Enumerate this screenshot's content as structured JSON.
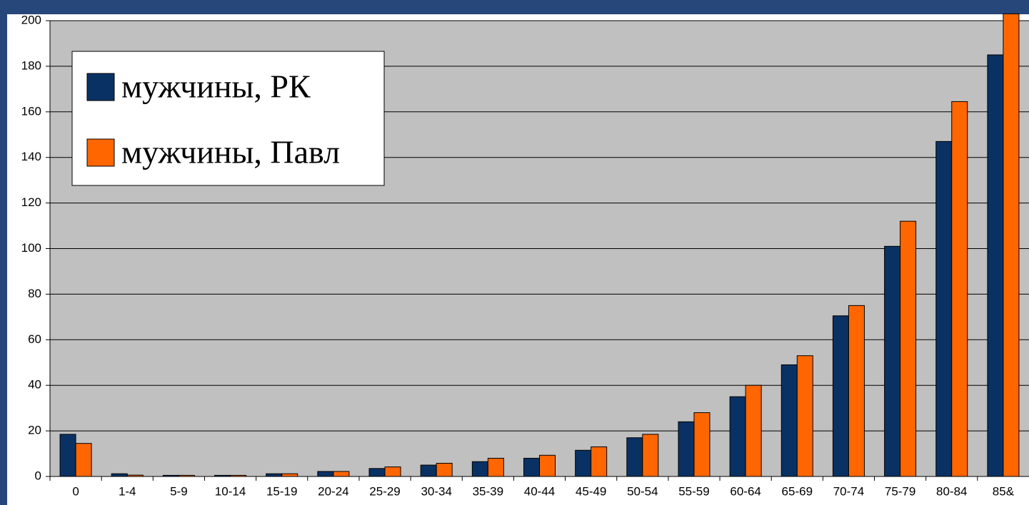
{
  "chart_data": {
    "type": "bar",
    "categories": [
      "0",
      "1-4",
      "5-9",
      "10-14",
      "15-19",
      "20-24",
      "25-29",
      "30-34",
      "35-39",
      "40-44",
      "45-49",
      "50-54",
      "55-59",
      "60-64",
      "65-69",
      "70-74",
      "75-79",
      "80-84",
      "85&"
    ],
    "series": [
      {
        "name": "мужчины, РК",
        "color": "#0a3163",
        "values": [
          18.5,
          1.2,
          0.5,
          0.5,
          1.2,
          2.2,
          3.5,
          5,
          6.5,
          8,
          11.5,
          17,
          24,
          35,
          49,
          70.5,
          101,
          147,
          185
        ]
      },
      {
        "name": "мужчины, Павл",
        "color": "#ff6600",
        "values": [
          14.5,
          0.6,
          0.5,
          0.5,
          1.2,
          2.2,
          4.2,
          5.8,
          8,
          9.3,
          13,
          18.5,
          28,
          40,
          53,
          75,
          112,
          164.5,
          203
        ]
      }
    ],
    "ylim": [
      0,
      200
    ],
    "yticks": [
      0,
      20,
      40,
      60,
      80,
      100,
      120,
      140,
      160,
      180,
      200
    ],
    "grid": true,
    "legend": "upper left"
  }
}
